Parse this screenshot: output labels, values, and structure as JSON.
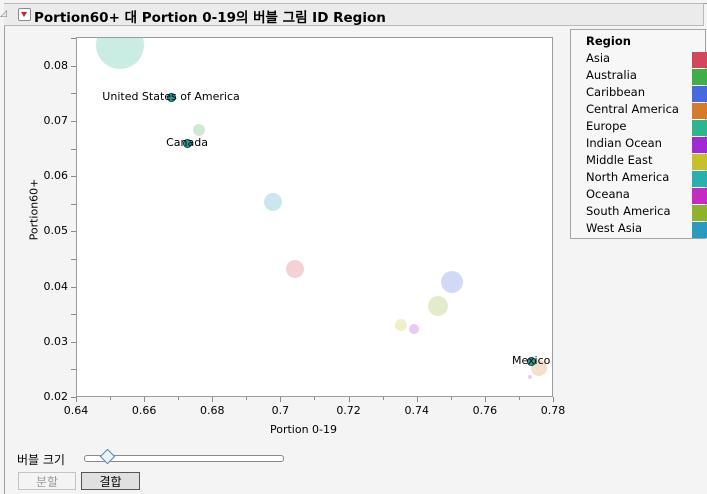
{
  "title": "Portion60+ 대 Portion 0-19의 버블 그림 ID Region",
  "chart_data": {
    "type": "scatter",
    "subtype": "bubble",
    "title": "Portion60+ 대 Portion 0-19의 버블 그림 ID Region",
    "xlabel": "Portion 0-19",
    "ylabel": "Portion60+",
    "xlim": [
      0.64,
      0.78
    ],
    "ylim": [
      0.02,
      0.085
    ],
    "x_ticks": [
      "0.64",
      "0.66",
      "0.68",
      "0.7",
      "0.72",
      "0.74",
      "0.76",
      "0.78"
    ],
    "y_ticks": [
      "0.02",
      "0.03",
      "0.04",
      "0.05",
      "0.06",
      "0.07",
      "0.08"
    ],
    "grid": false,
    "legend_position": "right",
    "legend_title": "Region",
    "series": [
      {
        "name": "Europe",
        "x": 0.6526,
        "y": 0.084,
        "size": 24,
        "color": "#2bb68e"
      },
      {
        "name": "Australia",
        "x": 0.6758,
        "y": 0.0686,
        "size": 6,
        "color": "#3dae48"
      },
      {
        "name": "West Asia",
        "x": 0.6976,
        "y": 0.0555,
        "size": 9,
        "color": "#2a9ac0"
      },
      {
        "name": "Asia",
        "x": 0.704,
        "y": 0.0434,
        "size": 9,
        "color": "#d2485a"
      },
      {
        "name": "Caribbean",
        "x": 0.75,
        "y": 0.041,
        "size": 11,
        "color": "#4669de"
      },
      {
        "name": "South America",
        "x": 0.746,
        "y": 0.0367,
        "size": 10,
        "color": "#8eb22a"
      },
      {
        "name": "Middle East",
        "x": 0.735,
        "y": 0.0332,
        "size": 6,
        "color": "#c6c12a"
      },
      {
        "name": "Indian Ocean",
        "x": 0.739,
        "y": 0.0325,
        "size": 5,
        "color": "#a22ad6"
      },
      {
        "name": "Central America",
        "x": 0.7757,
        "y": 0.0254,
        "size": 8,
        "color": "#d77a2a"
      },
      {
        "name": "Oceana",
        "x": 0.773,
        "y": 0.0238,
        "size": 2,
        "color": "#c42ac4"
      }
    ],
    "labeled_points": [
      {
        "label": "United States of America",
        "x": 0.6676,
        "y": 0.0746
      },
      {
        "label": "Canada",
        "x": 0.6723,
        "y": 0.0662
      },
      {
        "label": "Mexico",
        "x": 0.7733,
        "y": 0.0267
      }
    ]
  },
  "legend": {
    "title": "Region",
    "items": [
      {
        "label": "Asia",
        "color": "#d2485a"
      },
      {
        "label": "Australia",
        "color": "#3dae48"
      },
      {
        "label": "Caribbean",
        "color": "#4669de"
      },
      {
        "label": "Central America",
        "color": "#d77a2a"
      },
      {
        "label": "Europe",
        "color": "#2bb68e"
      },
      {
        "label": "Indian Ocean",
        "color": "#a22ad6"
      },
      {
        "label": "Middle East",
        "color": "#c6c12a"
      },
      {
        "label": "North America",
        "color": "#27b0ae"
      },
      {
        "label": "Oceana",
        "color": "#c42ac4"
      },
      {
        "label": "South America",
        "color": "#8eb22a"
      },
      {
        "label": "West Asia",
        "color": "#2a9ac0"
      }
    ]
  },
  "controls": {
    "bubble_size_label": "버블 크기",
    "split_button": "분할",
    "merge_button": "결합"
  }
}
